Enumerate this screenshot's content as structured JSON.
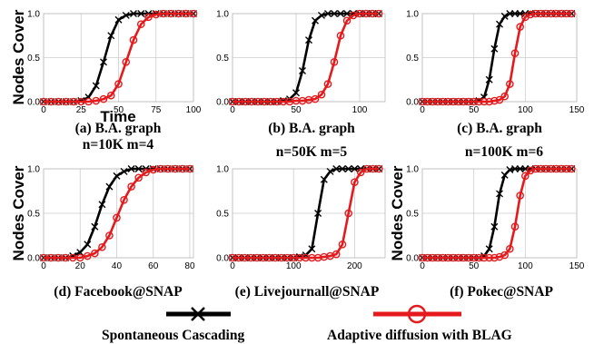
{
  "chart_data": [
    {
      "type": "line",
      "caption": [
        "(a) B.A. graph",
        "n=10K  m=4"
      ],
      "xlabel": "Time",
      "ylabel": "Nodes Cover",
      "xlim": [
        0,
        100
      ],
      "ylim": [
        0.0,
        1.0
      ],
      "xticks": [
        "0",
        "25",
        "50",
        "75",
        "100"
      ],
      "yticks": [
        "0.0",
        "0.5",
        "1.0"
      ],
      "series": [
        {
          "name": "Spontaneous Cascading",
          "color": "#000000",
          "x": [
            0,
            5,
            10,
            15,
            20,
            25,
            30,
            35,
            40,
            45,
            50,
            55,
            60,
            65,
            70,
            75,
            80,
            85,
            90,
            95,
            100
          ],
          "y": [
            0,
            0,
            0,
            0,
            0,
            0.01,
            0.05,
            0.18,
            0.45,
            0.75,
            0.93,
            0.98,
            1,
            1,
            1,
            1,
            1,
            1,
            1,
            1,
            1
          ]
        },
        {
          "name": "Adaptive diffusion with BLAG",
          "color": "#e41a1c",
          "x": [
            0,
            5,
            10,
            15,
            20,
            25,
            30,
            35,
            40,
            45,
            50,
            55,
            60,
            65,
            70,
            75,
            80,
            85,
            90,
            95,
            100
          ],
          "y": [
            0,
            0,
            0,
            0,
            0,
            0,
            0,
            0.01,
            0.03,
            0.07,
            0.2,
            0.45,
            0.7,
            0.88,
            0.96,
            0.99,
            1,
            1,
            1,
            1,
            1
          ]
        }
      ]
    },
    {
      "type": "line",
      "caption": [
        "(b) B.A. graph",
        "n=50K  m=5"
      ],
      "xlabel": "",
      "ylabel": "",
      "xlim": [
        0,
        120
      ],
      "ylim": [
        0.0,
        1.0
      ],
      "xticks": [
        "0",
        "50",
        "100"
      ],
      "yticks": [
        "0.0",
        "0.5",
        "1.0"
      ],
      "series": [
        {
          "name": "Spontaneous Cascading",
          "color": "#000000",
          "x": [
            0,
            5,
            10,
            15,
            20,
            25,
            30,
            35,
            40,
            45,
            50,
            55,
            60,
            65,
            70,
            75,
            80,
            85,
            90,
            95,
            100,
            105,
            110,
            115
          ],
          "y": [
            0,
            0,
            0,
            0,
            0,
            0,
            0,
            0,
            0.01,
            0.03,
            0.1,
            0.35,
            0.7,
            0.92,
            0.98,
            1,
            1,
            1,
            1,
            1,
            1,
            1,
            1,
            1
          ]
        },
        {
          "name": "Adaptive diffusion with BLAG",
          "color": "#e41a1c",
          "x": [
            0,
            5,
            10,
            15,
            20,
            25,
            30,
            35,
            40,
            45,
            50,
            55,
            60,
            65,
            70,
            75,
            80,
            85,
            90,
            95,
            100,
            105,
            110,
            115
          ],
          "y": [
            0,
            0,
            0,
            0,
            0,
            0,
            0,
            0,
            0,
            0,
            0.01,
            0.01,
            0.02,
            0.03,
            0.08,
            0.2,
            0.45,
            0.75,
            0.92,
            0.98,
            1,
            1,
            1,
            1
          ]
        }
      ]
    },
    {
      "type": "line",
      "caption": [
        "(c) B.A. graph",
        "n=100K  m=6"
      ],
      "xlabel": "",
      "ylabel": "",
      "xlim": [
        0,
        150
      ],
      "ylim": [
        0.0,
        1.0
      ],
      "xticks": [
        "0",
        "50",
        "100",
        "150"
      ],
      "yticks": [
        "0.0",
        "0.5",
        "1.0"
      ],
      "series": [
        {
          "name": "Spontaneous Cascading",
          "color": "#000000",
          "x": [
            0,
            5,
            10,
            15,
            20,
            25,
            30,
            35,
            40,
            45,
            50,
            55,
            60,
            65,
            70,
            75,
            80,
            85,
            90,
            95,
            100,
            105,
            110,
            115,
            120,
            125,
            130,
            135,
            140,
            145
          ],
          "y": [
            0,
            0,
            0,
            0,
            0,
            0,
            0,
            0,
            0,
            0,
            0,
            0.01,
            0.05,
            0.25,
            0.6,
            0.88,
            0.97,
            1,
            1,
            1,
            1,
            1,
            1,
            1,
            1,
            1,
            1,
            1,
            1,
            1
          ]
        },
        {
          "name": "Adaptive diffusion with BLAG",
          "color": "#e41a1c",
          "x": [
            0,
            5,
            10,
            15,
            20,
            25,
            30,
            35,
            40,
            45,
            50,
            55,
            60,
            65,
            70,
            75,
            80,
            85,
            90,
            95,
            100,
            105,
            110,
            115,
            120,
            125,
            130,
            135,
            140,
            145
          ],
          "y": [
            0,
            0,
            0,
            0,
            0,
            0,
            0,
            0,
            0,
            0,
            0,
            0,
            0,
            0,
            0.01,
            0.02,
            0.06,
            0.2,
            0.55,
            0.85,
            0.96,
            0.99,
            1,
            1,
            1,
            1,
            1,
            1,
            1,
            1
          ]
        }
      ]
    },
    {
      "type": "line",
      "caption": [
        "(d) Facebook@SNAP"
      ],
      "xlabel": "",
      "ylabel": "Nodes Cover",
      "xlim": [
        0,
        82
      ],
      "ylim": [
        0.0,
        1.0
      ],
      "xticks": [
        "0",
        "20",
        "40",
        "60",
        "80"
      ],
      "yticks": [
        "0.0",
        "0.5",
        "1.0"
      ],
      "series": [
        {
          "name": "Spontaneous Cascading",
          "color": "#000000",
          "x": [
            0,
            4,
            8,
            12,
            16,
            20,
            24,
            28,
            32,
            36,
            40,
            44,
            48,
            52,
            56,
            60,
            64,
            68,
            72,
            76,
            80
          ],
          "y": [
            0,
            0,
            0,
            0,
            0.02,
            0.06,
            0.15,
            0.35,
            0.6,
            0.8,
            0.92,
            0.97,
            1,
            1,
            1,
            1,
            1,
            1,
            1,
            1,
            1
          ]
        },
        {
          "name": "Adaptive diffusion with BLAG",
          "color": "#e41a1c",
          "x": [
            0,
            4,
            8,
            12,
            16,
            20,
            24,
            28,
            32,
            36,
            40,
            44,
            48,
            52,
            56,
            60,
            64,
            68,
            72,
            76,
            80
          ],
          "y": [
            0,
            0,
            0,
            0,
            0,
            0,
            0.02,
            0.05,
            0.12,
            0.25,
            0.45,
            0.65,
            0.8,
            0.9,
            0.96,
            0.99,
            1,
            1,
            1,
            1,
            1
          ]
        }
      ]
    },
    {
      "type": "line",
      "caption": [
        "(e) Livejournall@SNAP"
      ],
      "xlabel": "",
      "ylabel": "",
      "xlim": [
        0,
        250
      ],
      "ylim": [
        0.0,
        1.0
      ],
      "xticks": [
        "0",
        "100",
        "200"
      ],
      "yticks": [
        "0.0",
        "0.5",
        "1.0"
      ],
      "series": [
        {
          "name": "Spontaneous Cascading",
          "color": "#000000",
          "x": [
            0,
            10,
            20,
            30,
            40,
            50,
            60,
            70,
            80,
            90,
            100,
            110,
            120,
            130,
            140,
            150,
            160,
            170,
            180,
            190,
            200,
            210,
            220,
            230,
            240
          ],
          "y": [
            0,
            0,
            0,
            0,
            0,
            0,
            0,
            0,
            0,
            0,
            0,
            0.01,
            0.03,
            0.1,
            0.5,
            0.88,
            0.97,
            1,
            1,
            1,
            1,
            1,
            1,
            1,
            1
          ]
        },
        {
          "name": "Adaptive diffusion with BLAG",
          "color": "#e41a1c",
          "x": [
            0,
            10,
            20,
            30,
            40,
            50,
            60,
            70,
            80,
            90,
            100,
            110,
            120,
            130,
            140,
            150,
            160,
            170,
            180,
            190,
            200,
            210,
            220,
            230,
            240
          ],
          "y": [
            0,
            0,
            0,
            0,
            0,
            0,
            0,
            0,
            0,
            0,
            0,
            0,
            0,
            0,
            0,
            0.01,
            0.02,
            0.04,
            0.15,
            0.5,
            0.85,
            0.96,
            1,
            1,
            1
          ]
        }
      ]
    },
    {
      "type": "line",
      "caption": [
        "(f) Pokec@SNAP"
      ],
      "xlabel": "",
      "ylabel": "Nodes Cover",
      "xlim": [
        0,
        150
      ],
      "ylim": [
        0.0,
        1.0
      ],
      "xticks": [
        "0",
        "50",
        "100",
        "150"
      ],
      "yticks": [
        "0.0",
        "0.5",
        "1.0"
      ],
      "series": [
        {
          "name": "Spontaneous Cascading",
          "color": "#000000",
          "x": [
            0,
            5,
            10,
            15,
            20,
            25,
            30,
            35,
            40,
            45,
            50,
            55,
            60,
            65,
            70,
            75,
            80,
            85,
            90,
            95,
            100,
            105,
            110,
            115,
            120,
            125,
            130,
            135,
            140,
            145
          ],
          "y": [
            0,
            0,
            0,
            0,
            0,
            0,
            0,
            0,
            0,
            0,
            0,
            0,
            0.02,
            0.1,
            0.35,
            0.72,
            0.93,
            0.99,
            1,
            1,
            1,
            1,
            1,
            1,
            1,
            1,
            1,
            1,
            1,
            1
          ]
        },
        {
          "name": "Adaptive diffusion with BLAG",
          "color": "#e41a1c",
          "x": [
            0,
            5,
            10,
            15,
            20,
            25,
            30,
            35,
            40,
            45,
            50,
            55,
            60,
            65,
            70,
            75,
            80,
            85,
            90,
            95,
            100,
            105,
            110,
            115,
            120,
            125,
            130,
            135,
            140,
            145
          ],
          "y": [
            0,
            0,
            0,
            0,
            0,
            0,
            0,
            0,
            0,
            0,
            0,
            0,
            0,
            0,
            0,
            0.01,
            0.03,
            0.1,
            0.35,
            0.7,
            0.92,
            0.98,
            1,
            1,
            1,
            1,
            1,
            1,
            1,
            1
          ]
        }
      ]
    }
  ],
  "legend": {
    "placement": "bottom",
    "items": [
      {
        "label": "Spontaneous Cascading",
        "color": "#000000",
        "marker": "x-icon"
      },
      {
        "label": "Adaptive diffusion with BLAG",
        "color": "#e41a1c",
        "marker": "circle-icon"
      }
    ]
  }
}
